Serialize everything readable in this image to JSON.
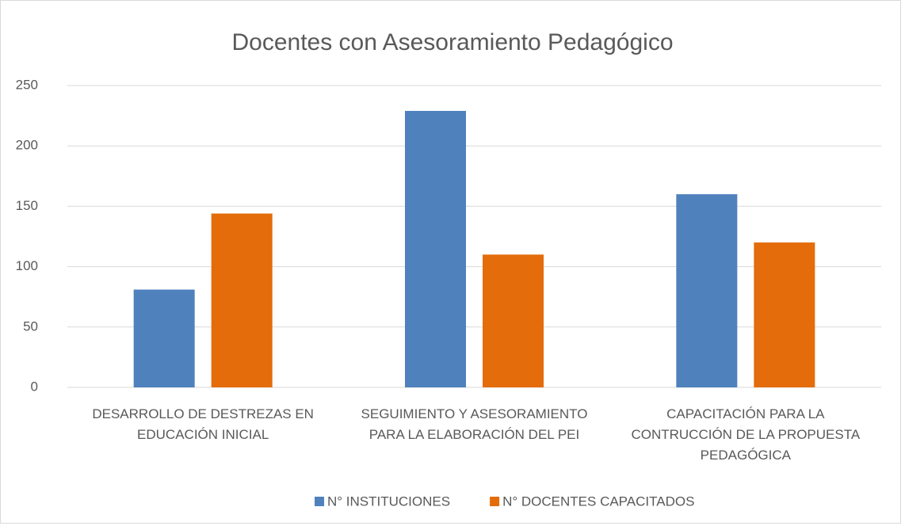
{
  "chart_data": {
    "type": "bar",
    "title": "Docentes con Asesoramiento Pedagógico",
    "categories": [
      "DESARROLLO DE DESTREZAS EN EDUCACIÓN INICIAL",
      "SEGUIMIENTO Y ASESORAMIENTO PARA LA ELABORACIÓN DEL PEI",
      "CAPACITACIÓN PARA LA CONTRUCCIÓN DE LA PROPUESTA PEDAGÓGICA"
    ],
    "series": [
      {
        "name": "N° INSTITUCIONES",
        "color": "#4f81bd",
        "values": [
          81,
          229,
          160
        ]
      },
      {
        "name": "N° DOCENTES CAPACITADOS",
        "color": "#e46c0a",
        "values": [
          144,
          110,
          120
        ]
      }
    ],
    "ylim": [
      0,
      250
    ],
    "yticks": [
      0,
      50,
      100,
      150,
      200,
      250
    ],
    "grid": true,
    "legend": "bottom"
  }
}
